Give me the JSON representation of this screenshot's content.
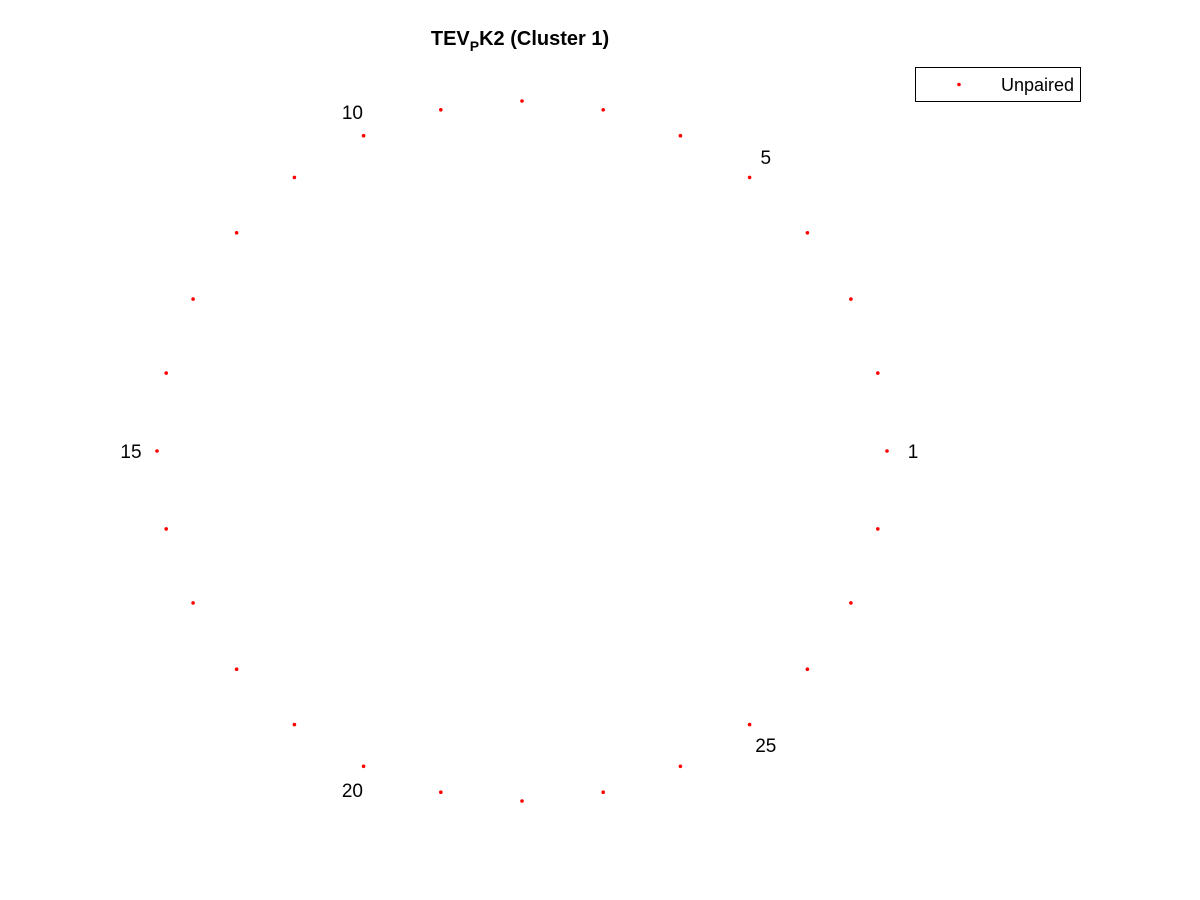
{
  "chart_data": {
    "type": "scatter",
    "title": {
      "main": "TEV",
      "subscript": "P",
      "suffix": "K2 (Cluster 1)"
    },
    "xlabel": "",
    "ylabel": "",
    "axes_visible": false,
    "grid": false,
    "legend": {
      "placement": "top-right",
      "entries": [
        "Unpaired"
      ]
    },
    "series": [
      {
        "name": "Unpaired",
        "color": "#ff0000",
        "marker": "dot",
        "count": 28,
        "layout": "circle",
        "start_angle_deg": 0,
        "direction": "counterclockwise"
      }
    ],
    "point_labels": [
      {
        "index": 1,
        "text": "1"
      },
      {
        "index": 5,
        "text": "5"
      },
      {
        "index": 10,
        "text": "10"
      },
      {
        "index": 15,
        "text": "15"
      },
      {
        "index": 20,
        "text": "20"
      },
      {
        "index": 25,
        "text": "25"
      }
    ]
  }
}
